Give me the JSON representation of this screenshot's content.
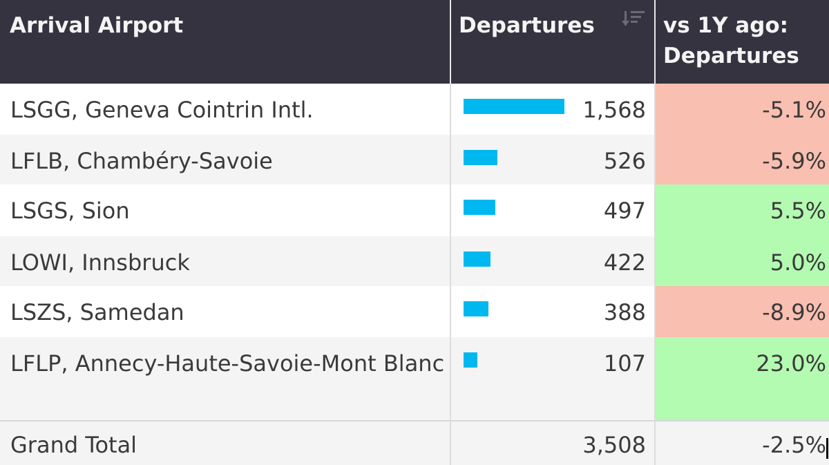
{
  "header": {
    "col_airport": "Arrival Airport",
    "col_departures": "Departures",
    "col_change_line1": "vs 1Y ago:",
    "col_change_line2": "Departures"
  },
  "rows": [
    {
      "airport": "LSGG, Geneva Cointrin Intl.",
      "departures": "1,568",
      "departures_value": 1568,
      "change": "-5.1%",
      "change_color": "#f9bfb0"
    },
    {
      "airport": "LFLB, Chambéry-Savoie",
      "departures": "526",
      "departures_value": 526,
      "change": "-5.9%",
      "change_color": "#f9bfb0"
    },
    {
      "airport": "LSGS, Sion",
      "departures": "497",
      "departures_value": 497,
      "change": "5.5%",
      "change_color": "#b3fbb1"
    },
    {
      "airport": "LOWI, Innsbruck",
      "departures": "422",
      "departures_value": 422,
      "change": "5.0%",
      "change_color": "#b3fbb1"
    },
    {
      "airport": "LSZS, Samedan",
      "departures": "388",
      "departures_value": 388,
      "change": "-8.9%",
      "change_color": "#f9bfb0"
    },
    {
      "airport": "LFLP, Annecy-Haute-Savoie-Mont Blanc",
      "departures": "107",
      "departures_value": 107,
      "change": "23.0%",
      "change_color": "#b3fbb1"
    }
  ],
  "total": {
    "label": "Grand Total",
    "departures": "3,508",
    "change": "-2.5%"
  },
  "colors": {
    "header_bg": "#34333f",
    "bar": "#00b8f0",
    "negative": "#f9bfb0",
    "positive": "#b3fbb1"
  }
}
